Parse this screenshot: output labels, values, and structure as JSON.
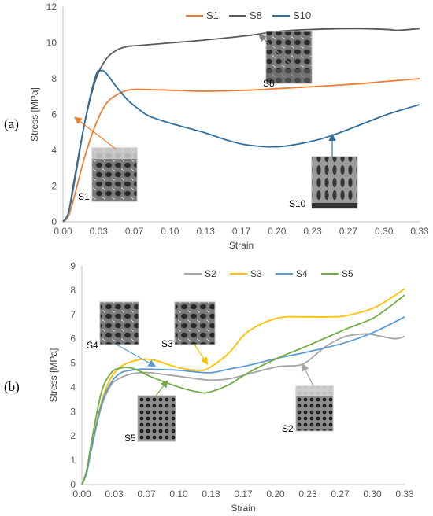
{
  "chart_data": [
    {
      "panel": "(a)",
      "type": "line",
      "xlabel": "Strain",
      "ylabel": "Stress [MPa]",
      "xlim": [
        0,
        0.33
      ],
      "ylim": [
        0,
        12
      ],
      "x_ticks": [
        "0.00",
        "0.03",
        "0.07",
        "0.10",
        "0.13",
        "0.17",
        "0.20",
        "0.23",
        "0.27",
        "0.30",
        "0.33"
      ],
      "y_ticks": [
        "0",
        "2",
        "4",
        "6",
        "8",
        "10",
        "12"
      ],
      "grid": false,
      "legend": "top-center",
      "series": [
        {
          "name": "S1",
          "color": "#ED7D31",
          "x": [
            0,
            0.005,
            0.01,
            0.02,
            0.03,
            0.04,
            0.05,
            0.06,
            0.07,
            0.1,
            0.13,
            0.17,
            0.2,
            0.23,
            0.27,
            0.3,
            0.33
          ],
          "y": [
            0,
            0.3,
            1.3,
            3.6,
            5.4,
            6.6,
            7.1,
            7.35,
            7.4,
            7.35,
            7.3,
            7.35,
            7.45,
            7.55,
            7.7,
            7.85,
            8.0
          ]
        },
        {
          "name": "S8",
          "color": "#595959",
          "x": [
            0,
            0.005,
            0.01,
            0.02,
            0.03,
            0.04,
            0.05,
            0.06,
            0.07,
            0.1,
            0.13,
            0.17,
            0.2,
            0.23,
            0.27,
            0.3,
            0.31,
            0.33
          ],
          "y": [
            0,
            0.5,
            2.2,
            5.5,
            7.9,
            9.1,
            9.6,
            9.8,
            9.85,
            10.0,
            10.15,
            10.4,
            10.65,
            10.75,
            10.8,
            10.75,
            10.7,
            10.8
          ]
        },
        {
          "name": "S10",
          "color": "#2E6E9E",
          "x": [
            0,
            0.005,
            0.01,
            0.02,
            0.03,
            0.035,
            0.04,
            0.05,
            0.06,
            0.07,
            0.08,
            0.1,
            0.13,
            0.15,
            0.17,
            0.2,
            0.23,
            0.25,
            0.27,
            0.3,
            0.33
          ],
          "y": [
            0,
            0.5,
            2.0,
            5.5,
            8.1,
            8.45,
            8.3,
            7.5,
            6.8,
            6.3,
            5.9,
            5.5,
            5.0,
            4.6,
            4.3,
            4.2,
            4.5,
            4.85,
            5.3,
            6.0,
            6.55
          ]
        }
      ],
      "annotations": [
        "S1",
        "S8",
        "S10"
      ]
    },
    {
      "panel": "(b)",
      "type": "line",
      "xlabel": "Strain",
      "ylabel": "Stress [MPa]",
      "xlim": [
        0,
        0.33
      ],
      "ylim": [
        0,
        9
      ],
      "x_ticks": [
        "0.00",
        "0.03",
        "0.07",
        "0.10",
        "0.13",
        "0.17",
        "0.20",
        "0.23",
        "0.27",
        "0.30",
        "0.33"
      ],
      "y_ticks": [
        "0",
        "1",
        "2",
        "3",
        "4",
        "5",
        "6",
        "7",
        "8",
        "9"
      ],
      "grid": false,
      "legend": "top-center",
      "series": [
        {
          "name": "S2",
          "color": "#A5A5A5",
          "x": [
            0,
            0.005,
            0.01,
            0.02,
            0.03,
            0.04,
            0.05,
            0.06,
            0.07,
            0.1,
            0.13,
            0.15,
            0.17,
            0.2,
            0.22,
            0.23,
            0.25,
            0.27,
            0.29,
            0.3,
            0.32,
            0.33
          ],
          "y": [
            0,
            0.5,
            1.5,
            3.2,
            4.1,
            4.4,
            4.55,
            4.6,
            4.6,
            4.45,
            4.3,
            4.35,
            4.55,
            4.85,
            4.9,
            5.05,
            5.7,
            6.1,
            6.2,
            6.15,
            6.0,
            6.1
          ]
        },
        {
          "name": "S3",
          "color": "#FFC000",
          "x": [
            0,
            0.005,
            0.01,
            0.02,
            0.03,
            0.04,
            0.05,
            0.06,
            0.07,
            0.08,
            0.1,
            0.12,
            0.13,
            0.15,
            0.17,
            0.2,
            0.23,
            0.25,
            0.27,
            0.3,
            0.33
          ],
          "y": [
            0,
            0.5,
            1.6,
            3.4,
            4.4,
            4.85,
            5.05,
            5.15,
            5.15,
            5.05,
            4.8,
            4.7,
            4.8,
            5.4,
            6.3,
            6.85,
            6.9,
            6.9,
            6.95,
            7.3,
            8.05
          ]
        },
        {
          "name": "S4",
          "color": "#5B9BD5",
          "x": [
            0,
            0.005,
            0.01,
            0.02,
            0.03,
            0.04,
            0.05,
            0.06,
            0.07,
            0.1,
            0.13,
            0.15,
            0.17,
            0.2,
            0.23,
            0.27,
            0.3,
            0.33
          ],
          "y": [
            0,
            0.5,
            1.5,
            3.3,
            4.2,
            4.6,
            4.7,
            4.75,
            4.75,
            4.7,
            4.6,
            4.75,
            4.9,
            5.2,
            5.45,
            5.85,
            6.3,
            6.9
          ]
        },
        {
          "name": "S5",
          "color": "#70AD47",
          "x": [
            0,
            0.005,
            0.01,
            0.02,
            0.03,
            0.04,
            0.05,
            0.06,
            0.07,
            0.1,
            0.12,
            0.13,
            0.15,
            0.17,
            0.2,
            0.23,
            0.27,
            0.3,
            0.33
          ],
          "y": [
            0,
            0.6,
            1.8,
            3.8,
            4.6,
            4.8,
            4.8,
            4.65,
            4.45,
            4.0,
            3.8,
            3.8,
            4.1,
            4.6,
            5.2,
            5.7,
            6.4,
            6.9,
            7.8
          ]
        }
      ],
      "annotations": [
        "S4",
        "S3",
        "S5",
        "S2"
      ]
    }
  ]
}
